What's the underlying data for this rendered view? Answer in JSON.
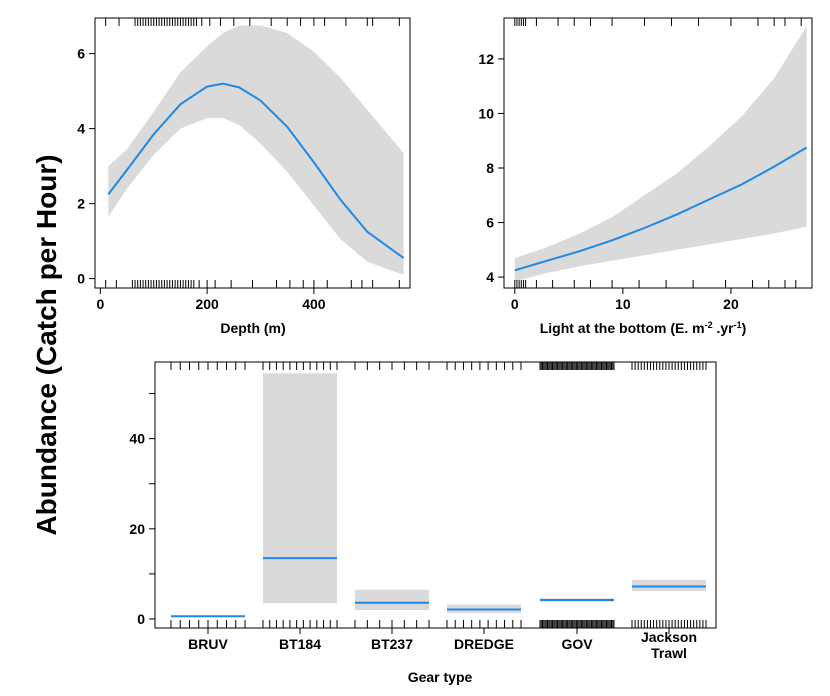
{
  "figure": {
    "ylabel": "Abundance  (Catch per Hour)"
  },
  "chart_data": [
    {
      "type": "line",
      "xlabel": "Depth (m)",
      "xlim": [
        -10,
        580
      ],
      "ylim": [
        -0.25,
        6.95
      ],
      "xticks": [
        0,
        200,
        400
      ],
      "yticks": [
        0,
        2,
        4,
        6
      ],
      "series": [
        {
          "x": [
            15,
            50,
            100,
            150,
            200,
            230,
            260,
            300,
            350,
            400,
            450,
            500,
            568
          ],
          "y": [
            2.25,
            2.9,
            3.85,
            4.65,
            5.12,
            5.2,
            5.1,
            4.75,
            4.05,
            3.1,
            2.1,
            1.25,
            0.55
          ],
          "lower": [
            1.65,
            2.4,
            3.3,
            4.0,
            4.28,
            4.28,
            4.1,
            3.6,
            2.85,
            1.95,
            1.05,
            0.45,
            0.1
          ],
          "upper": [
            3.0,
            3.45,
            4.45,
            5.5,
            6.2,
            6.55,
            6.75,
            6.75,
            6.55,
            6.05,
            5.35,
            4.5,
            3.35
          ]
        }
      ],
      "rug_top": [
        10,
        35,
        65,
        70,
        75,
        80,
        85,
        90,
        95,
        100,
        105,
        110,
        115,
        120,
        125,
        130,
        135,
        140,
        145,
        150,
        155,
        160,
        165,
        170,
        175,
        180,
        190,
        205,
        225,
        250,
        280,
        320,
        350,
        375,
        400,
        420,
        460,
        500,
        510,
        560
      ],
      "rug_bottom": [
        10,
        30,
        60,
        65,
        70,
        75,
        80,
        85,
        90,
        95,
        100,
        105,
        110,
        115,
        120,
        125,
        130,
        135,
        140,
        145,
        150,
        155,
        160,
        165,
        170,
        175,
        185,
        200,
        215,
        245,
        285,
        330,
        355,
        380,
        400,
        425,
        470,
        490,
        510,
        560
      ]
    },
    {
      "type": "line",
      "xlabel": "Light at the bottom (E. m-2 .yr-1)",
      "xlim": [
        -1,
        27.5
      ],
      "ylim": [
        3.6,
        13.5
      ],
      "xticks": [
        0,
        10,
        20
      ],
      "yticks": [
        4,
        6,
        8,
        10,
        12
      ],
      "series": [
        {
          "x": [
            0,
            3,
            6,
            9,
            12,
            15,
            18,
            21,
            24,
            27
          ],
          "y": [
            4.25,
            4.6,
            4.95,
            5.35,
            5.8,
            6.3,
            6.85,
            7.4,
            8.05,
            8.75
          ],
          "lower": [
            3.85,
            4.15,
            4.4,
            4.6,
            4.8,
            5.0,
            5.2,
            5.4,
            5.6,
            5.85
          ],
          "upper": [
            4.7,
            5.1,
            5.6,
            6.2,
            7.0,
            7.8,
            8.8,
            9.9,
            11.3,
            13.2
          ]
        }
      ],
      "rug_top": [
        0,
        0.2,
        0.4,
        0.6,
        0.8,
        1.0,
        2.0,
        4.0,
        5.5,
        7.0,
        9.0,
        12.0,
        14.5,
        17.0,
        20.0,
        22.5,
        24.0,
        25.0,
        26.5
      ],
      "rug_bottom": [
        0,
        0.2,
        0.4,
        0.6,
        0.8,
        1.0,
        2.0,
        3.5,
        5.5,
        7.0,
        9.0,
        11.5,
        14.0,
        16.5,
        19.5,
        22.0,
        23.5,
        25.0,
        26.0
      ]
    },
    {
      "type": "bar",
      "xlabel": "Gear type",
      "categories": [
        "BRUV",
        "BT184",
        "BT237",
        "DREDGE",
        "GOV",
        "Jackson Trawl"
      ],
      "ylim": [
        -2,
        57
      ],
      "yticks": [
        0,
        20,
        40
      ],
      "values": [
        0.6,
        13.5,
        3.6,
        2.1,
        4.2,
        7.2
      ],
      "lower": [
        0.4,
        3.5,
        2.0,
        1.3,
        3.8,
        6.2
      ],
      "upper": [
        0.8,
        54.5,
        6.5,
        3.2,
        4.6,
        8.7
      ],
      "rug_counts": [
        9,
        12,
        7,
        10,
        60,
        25
      ]
    }
  ]
}
